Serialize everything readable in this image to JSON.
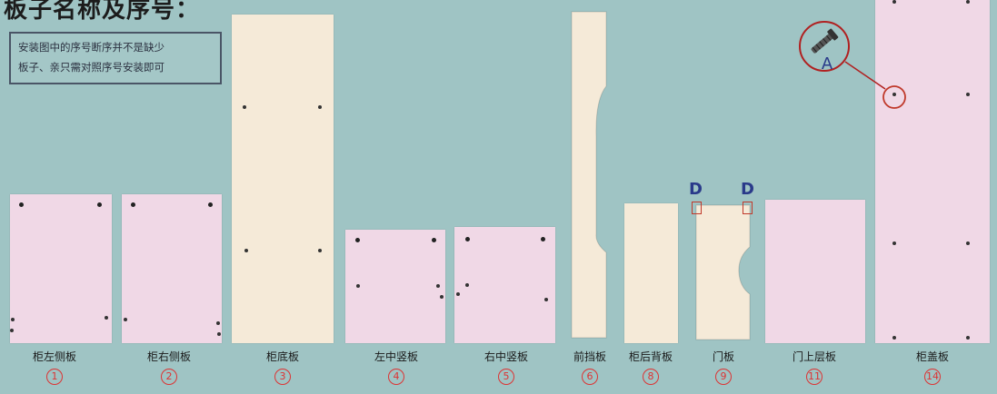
{
  "title": "板子名称及序号：",
  "note": {
    "line1": "安装图中的序号断序并不是缺少",
    "line2": "板子、亲只需对照序号安装即可"
  },
  "panels": [
    {
      "label": "柜左侧板",
      "number": "1"
    },
    {
      "label": "柜右侧板",
      "number": "2"
    },
    {
      "label": "柜底板",
      "number": "3"
    },
    {
      "label": "左中竖板",
      "number": "4"
    },
    {
      "label": "右中竖板",
      "number": "5"
    },
    {
      "label": "前挡板",
      "number": "6"
    },
    {
      "label": "柜后背板",
      "number": "8"
    },
    {
      "label": "门板",
      "number": "9"
    },
    {
      "label": "门上层板",
      "number": "11"
    },
    {
      "label": "柜盖板",
      "number": "14"
    }
  ],
  "markers": {
    "d_left": "D",
    "d_right": "D",
    "a": "A"
  },
  "colors": {
    "background": "#9fc4c4",
    "pink_panel": "#f0d8e6",
    "cream_panel": "#f5ead8",
    "circle_number": "#dd3333"
  }
}
